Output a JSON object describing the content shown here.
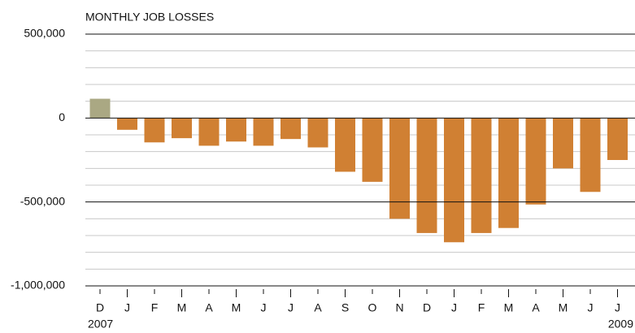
{
  "chart_data": {
    "type": "bar",
    "title": "MONTHLY JOB LOSSES",
    "categories": [
      "D",
      "J",
      "F",
      "M",
      "A",
      "M",
      "J",
      "J",
      "A",
      "S",
      "O",
      "N",
      "D",
      "J",
      "F",
      "M",
      "A",
      "M",
      "J",
      "J"
    ],
    "values": [
      115000,
      -70000,
      -145000,
      -120000,
      -165000,
      -140000,
      -165000,
      -125000,
      -175000,
      -320000,
      -380000,
      -600000,
      -685000,
      -740000,
      -685000,
      -655000,
      -515000,
      -300000,
      -440000,
      -250000
    ],
    "color": "#d08033",
    "positive_color": "#aaa883",
    "annotations": [
      "2007",
      "2009"
    ],
    "ylim": [
      -1000000,
      500000
    ],
    "yticks": [
      {
        "value": 500000,
        "label": "500,000"
      },
      {
        "value": 0,
        "label": "0"
      },
      {
        "value": -500000,
        "label": "-500,000"
      },
      {
        "value": -1000000,
        "label": "-1,000,000"
      }
    ],
    "yminorticks": [
      400000,
      300000,
      200000,
      100000,
      -100000,
      -200000,
      -300000,
      -400000,
      -600000,
      -700000,
      -800000,
      -900000
    ],
    "grid": true
  }
}
